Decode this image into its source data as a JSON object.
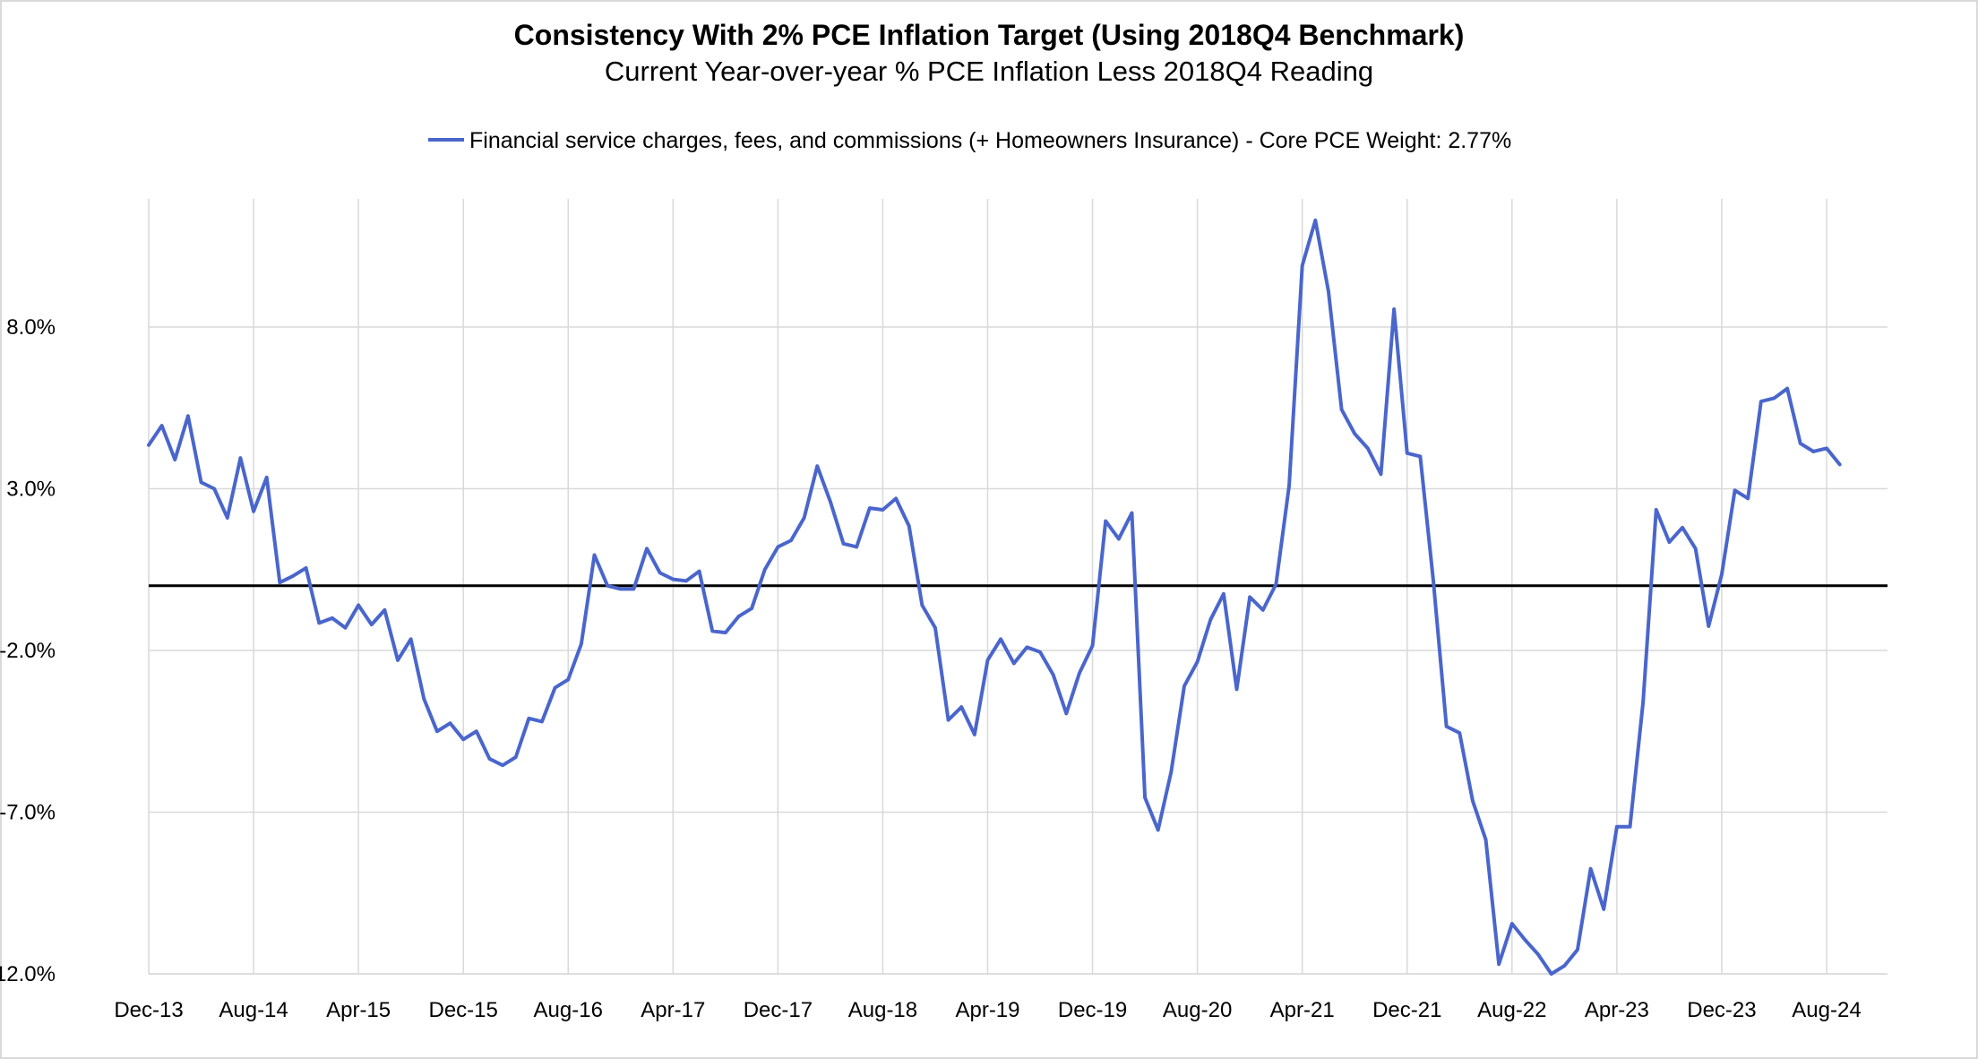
{
  "chart_data": {
    "type": "line",
    "title": "Consistency With 2% PCE Inflation Target (Using 2018Q4 Benchmark)",
    "subtitle": "Current Year-over-year % PCE Inflation Less 2018Q4 Reading",
    "xlabel": "",
    "ylabel": "",
    "x_tick_labels": [
      "Dec-13",
      "Aug-14",
      "Apr-15",
      "Dec-15",
      "Aug-16",
      "Apr-17",
      "Dec-17",
      "Aug-18",
      "Apr-19",
      "Dec-19",
      "Aug-20",
      "Apr-21",
      "Dec-21",
      "Aug-22",
      "Apr-23",
      "Dec-23",
      "Aug-24"
    ],
    "y_tick_labels": [
      "8.0%",
      "3.0%",
      "-2.0%",
      "-7.0%",
      "-12.0%"
    ],
    "y_ticks": [
      8,
      3,
      -2,
      -7,
      -12
    ],
    "ylim": [
      -12,
      12
    ],
    "x_start": "Dec-13",
    "grid": true,
    "baseline": 0,
    "legend_position": "top",
    "color": "#4a66cc",
    "series": [
      {
        "name": "Financial service charges, fees, and commissions (+ Homeowners Insurance) - Core PCE Weight: 2.77%",
        "values": [
          4.35,
          4.95,
          3.9,
          5.25,
          3.2,
          3.0,
          2.1,
          3.95,
          2.3,
          3.35,
          0.1,
          0.3,
          0.55,
          -1.15,
          -1.0,
          -1.3,
          -0.6,
          -1.2,
          -0.75,
          -2.3,
          -1.65,
          -3.5,
          -4.5,
          -4.25,
          -4.75,
          -4.5,
          -5.35,
          -5.55,
          -5.3,
          -4.1,
          -4.2,
          -3.15,
          -2.9,
          -1.8,
          0.95,
          0.0,
          -0.1,
          -0.1,
          1.15,
          0.4,
          0.2,
          0.15,
          0.45,
          -1.4,
          -1.45,
          -0.95,
          -0.7,
          0.5,
          1.2,
          1.4,
          2.1,
          3.7,
          2.6,
          1.3,
          1.2,
          2.4,
          2.35,
          2.7,
          1.85,
          -0.6,
          -1.3,
          -4.15,
          -3.75,
          -4.6,
          -2.3,
          -1.65,
          -2.4,
          -1.9,
          -2.05,
          -2.75,
          -3.95,
          -2.7,
          -1.85,
          2.0,
          1.45,
          2.25,
          -6.55,
          -7.55,
          -5.75,
          -3.1,
          -2.35,
          -1.05,
          -0.25,
          -3.2,
          -0.35,
          -0.75,
          0.05,
          3.1,
          9.9,
          11.3,
          9.1,
          5.45,
          4.7,
          4.25,
          3.45,
          8.55,
          4.1,
          4.0,
          0.15,
          -4.35,
          -4.55,
          -6.65,
          -7.85,
          -11.7,
          -10.45,
          -10.95,
          -11.4,
          -12.0,
          -11.75,
          -11.25,
          -8.75,
          -10.0,
          -7.45,
          -7.45,
          -3.6,
          2.35,
          1.35,
          1.8,
          1.15,
          -1.25,
          0.35,
          2.95,
          2.7,
          5.7,
          5.8,
          6.1,
          4.4,
          4.15,
          4.25,
          3.75
        ]
      }
    ]
  }
}
